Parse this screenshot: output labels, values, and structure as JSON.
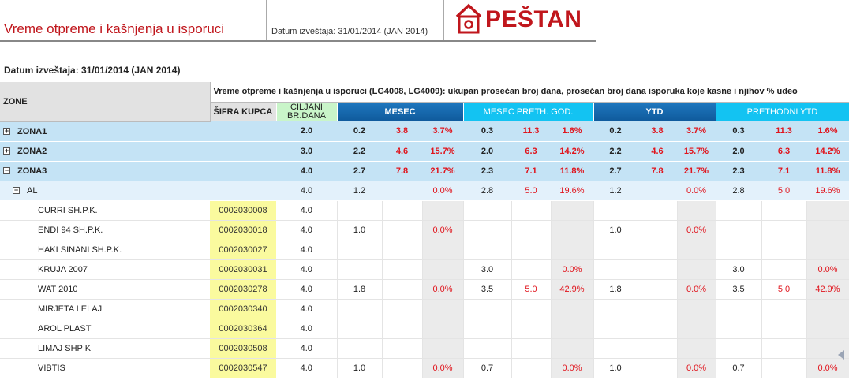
{
  "header": {
    "title": "Vreme otpreme i kašnjenja u isporuci",
    "date_label": "Datum izveštaja: 31/01/2014 (JAN 2014)",
    "logo_text": "PEŠTAN"
  },
  "report_date": "Datum izveštaja: 31/01/2014 (JAN 2014)",
  "table": {
    "zone_header": "ZONE",
    "main_header": "Vreme otpreme i kašnjenja u isporuci (LG4008, LG4009): ukupan prosečan broj dana, prosečan broj dana isporuka koje kasne i njihov % udeo",
    "sifra_header": "ŠIFRA KUPCA",
    "ciljani_header_line1": "CILJANI",
    "ciljani_header_line2": "BR.DANA",
    "groups": [
      "MESEC",
      "MESEC PRETH. GOD.",
      "YTD",
      "PRETHODNI YTD"
    ],
    "zones": [
      {
        "name": "ZONA1",
        "toggle": "+",
        "ciljani": "2.0",
        "vals": [
          "0.2",
          "3.8",
          "3.7%",
          "0.3",
          "11.3",
          "1.6%",
          "0.2",
          "3.8",
          "3.7%",
          "0.3",
          "11.3",
          "1.6%"
        ]
      },
      {
        "name": "ZONA2",
        "toggle": "+",
        "ciljani": "3.0",
        "vals": [
          "2.2",
          "4.6",
          "15.7%",
          "2.0",
          "6.3",
          "14.2%",
          "2.2",
          "4.6",
          "15.7%",
          "2.0",
          "6.3",
          "14.2%"
        ]
      },
      {
        "name": "ZONA3",
        "toggle": "−",
        "ciljani": "4.0",
        "vals": [
          "2.7",
          "7.8",
          "21.7%",
          "2.3",
          "7.1",
          "11.8%",
          "2.7",
          "7.8",
          "21.7%",
          "2.3",
          "7.1",
          "11.8%"
        ]
      }
    ],
    "sub": {
      "name": "AL",
      "toggle": "−",
      "ciljani": "4.0",
      "vals": [
        "1.2",
        "",
        "0.0%",
        "2.8",
        "5.0",
        "19.6%",
        "1.2",
        "",
        "0.0%",
        "2.8",
        "5.0",
        "19.6%"
      ]
    },
    "customers": [
      {
        "name": "CURRI SH.P.K.",
        "code": "0002030008",
        "ciljani": "4.0",
        "vals": [
          "",
          "",
          "",
          "",
          "",
          "",
          "",
          "",
          "",
          "",
          "",
          ""
        ]
      },
      {
        "name": "ENDI 94 SH.P.K.",
        "code": "0002030018",
        "ciljani": "4.0",
        "vals": [
          "1.0",
          "",
          "0.0%",
          "",
          "",
          "",
          "1.0",
          "",
          "0.0%",
          "",
          "",
          ""
        ]
      },
      {
        "name": "HAKI SINANI SH.P.K.",
        "code": "0002030027",
        "ciljani": "4.0",
        "vals": [
          "",
          "",
          "",
          "",
          "",
          "",
          "",
          "",
          "",
          "",
          "",
          ""
        ]
      },
      {
        "name": "KRUJA 2007",
        "code": "0002030031",
        "ciljani": "4.0",
        "vals": [
          "",
          "",
          "",
          "3.0",
          "",
          "0.0%",
          "",
          "",
          "",
          "3.0",
          "",
          "0.0%"
        ]
      },
      {
        "name": "WAT 2010",
        "code": "0002030278",
        "ciljani": "4.0",
        "vals": [
          "1.8",
          "",
          "0.0%",
          "3.5",
          "5.0",
          "42.9%",
          "1.8",
          "",
          "0.0%",
          "3.5",
          "5.0",
          "42.9%"
        ]
      },
      {
        "name": "MIRJETA LELAJ",
        "code": "0002030340",
        "ciljani": "4.0",
        "vals": [
          "",
          "",
          "",
          "",
          "",
          "",
          "",
          "",
          "",
          "",
          "",
          ""
        ]
      },
      {
        "name": "AROL PLAST",
        "code": "0002030364",
        "ciljani": "4.0",
        "vals": [
          "",
          "",
          "",
          "",
          "",
          "",
          "",
          "",
          "",
          "",
          "",
          ""
        ]
      },
      {
        "name": "LIMAJ SHP K",
        "code": "0002030508",
        "ciljani": "4.0",
        "vals": [
          "",
          "",
          "",
          "",
          "",
          "",
          "",
          "",
          "",
          "",
          "",
          ""
        ]
      },
      {
        "name": "VIBTIS",
        "code": "0002030547",
        "ciljani": "4.0",
        "vals": [
          "1.0",
          "",
          "0.0%",
          "0.7",
          "",
          "0.0%",
          "1.0",
          "",
          "0.0%",
          "0.7",
          "",
          "0.0%"
        ]
      }
    ]
  },
  "colors": {
    "brand_red": "#c0161c",
    "zone_row": "#c4e3f5",
    "sub_row": "#e3f1fb",
    "code_yellow": "#fafa9e",
    "group_dark": "#1565a8",
    "group_light": "#13c3f2"
  }
}
